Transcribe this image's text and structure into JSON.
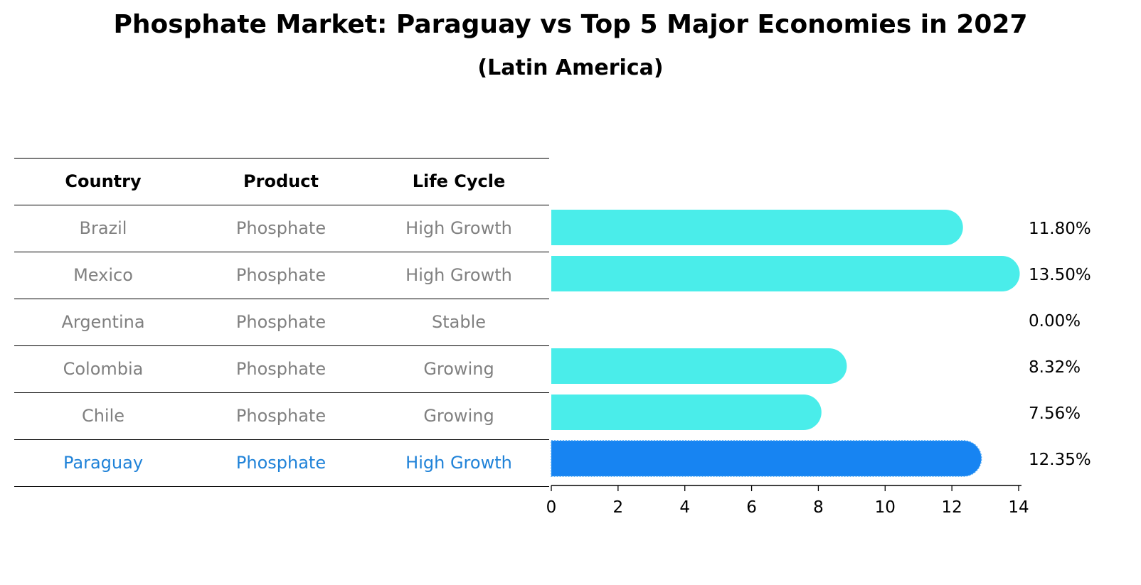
{
  "title": "Phosphate Market: Paraguay vs Top 5 Major Economies in 2027",
  "subtitle": "(Latin America)",
  "table": {
    "headers": [
      "Country",
      "Product",
      "Life Cycle"
    ],
    "rows": [
      [
        "Brazil",
        "Phosphate",
        "High Growth"
      ],
      [
        "Mexico",
        "Phosphate",
        "High Growth"
      ],
      [
        "Argentina",
        "Phosphate",
        "Stable"
      ],
      [
        "Colombia",
        "Phosphate",
        "Growing"
      ],
      [
        "Chile",
        "Phosphate",
        "Growing"
      ],
      [
        "Paraguay",
        "Phosphate",
        "High Growth"
      ]
    ],
    "highlight_row": 5
  },
  "colors": {
    "bar": "#4aedea",
    "highlight_bar": "#1784f2",
    "highlight_text": "#1f82d8",
    "body_text": "#808080"
  },
  "chart_data": {
    "type": "bar",
    "orientation": "horizontal",
    "categories": [
      "Brazil",
      "Mexico",
      "Argentina",
      "Colombia",
      "Chile",
      "Paraguay"
    ],
    "values": [
      11.8,
      13.5,
      0.0,
      8.32,
      7.56,
      12.35
    ],
    "value_labels": [
      "11.80%",
      "13.50%",
      "0.00%",
      "8.32%",
      "7.56%",
      "12.35%"
    ],
    "highlight": "Paraguay",
    "xlim": [
      0,
      14
    ],
    "xticks": [
      0,
      2,
      4,
      6,
      8,
      10,
      12,
      14
    ],
    "xlabel": "",
    "ylabel": "",
    "grid": false
  }
}
